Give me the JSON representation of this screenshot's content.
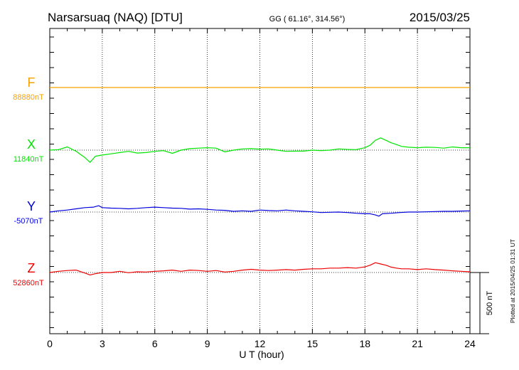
{
  "chart_data": {
    "type": "line",
    "title": "Narsarsuaq (NAQ)  [DTU]",
    "coords": "GG ( 61.16°, 314.56°)",
    "date": "2015/03/25",
    "xlabel": "U T (hour)",
    "xlim": [
      0,
      24
    ],
    "xticks": [
      "0",
      "3",
      "6",
      "9",
      "12",
      "15",
      "18",
      "21",
      "24"
    ],
    "grid": "vertical dotted every 3 hours",
    "scale_label": "500 nT",
    "scale_nT": 500,
    "plot_note": "Plotted at 2015/04/25 01:31 UT",
    "series": [
      {
        "name": "F",
        "baseline_label": "88880nT",
        "color": "#f5a200",
        "x": [
          0,
          24
        ],
        "y": [
          88880,
          88880
        ]
      },
      {
        "name": "X",
        "baseline_label": "11840nT",
        "color": "#00e600",
        "x": [
          0,
          0.5,
          1.0,
          1.5,
          1.8,
          2.0,
          2.3,
          2.6,
          3.0,
          3.5,
          4.0,
          4.5,
          5.0,
          5.5,
          6.0,
          6.5,
          7.0,
          7.5,
          8.0,
          8.5,
          9.0,
          9.5,
          10.0,
          10.5,
          11.0,
          11.5,
          12.0,
          12.5,
          13.0,
          13.5,
          14.0,
          14.5,
          15.0,
          15.5,
          16.0,
          16.5,
          17.0,
          17.5,
          18.0,
          18.3,
          18.6,
          18.9,
          19.2,
          19.5,
          19.8,
          20.1,
          20.5,
          21.0,
          21.5,
          22.0,
          22.5,
          23.0,
          23.5,
          24.0
        ],
        "y": [
          11840,
          11844,
          11866,
          11832,
          11800,
          11780,
          11740,
          11790,
          11800,
          11810,
          11820,
          11830,
          11816,
          11820,
          11830,
          11836,
          11814,
          11840,
          11852,
          11856,
          11860,
          11856,
          11826,
          11840,
          11850,
          11852,
          11848,
          11850,
          11840,
          11830,
          11832,
          11832,
          11840,
          11836,
          11840,
          11850,
          11846,
          11844,
          11860,
          11880,
          11920,
          11940,
          11920,
          11900,
          11886,
          11870,
          11864,
          11860,
          11864,
          11862,
          11856,
          11866,
          11860,
          11860
        ]
      },
      {
        "name": "Y",
        "baseline_label": "-5070nT",
        "color": "#0000dd",
        "x": [
          0,
          0.5,
          1.0,
          1.5,
          2.0,
          2.5,
          2.8,
          3.0,
          3.5,
          4.0,
          4.5,
          5.0,
          5.5,
          6.0,
          6.5,
          7.0,
          7.5,
          8.0,
          8.5,
          9.0,
          9.5,
          10.0,
          10.5,
          11.0,
          11.5,
          12.0,
          12.5,
          13.0,
          13.5,
          14.0,
          14.5,
          15.0,
          15.5,
          16.0,
          16.5,
          17.0,
          17.5,
          18.0,
          18.3,
          18.6,
          18.8,
          19.0,
          19.5,
          20.0,
          20.5,
          21.0,
          21.5,
          22.0,
          22.5,
          23.0,
          23.5,
          24.0
        ],
        "y": [
          -5076,
          -5066,
          -5060,
          -5050,
          -5040,
          -5036,
          -5024,
          -5040,
          -5044,
          -5046,
          -5050,
          -5046,
          -5040,
          -5036,
          -5040,
          -5044,
          -5046,
          -5052,
          -5050,
          -5054,
          -5060,
          -5062,
          -5070,
          -5066,
          -5070,
          -5060,
          -5064,
          -5066,
          -5060,
          -5066,
          -5070,
          -5074,
          -5080,
          -5078,
          -5076,
          -5080,
          -5086,
          -5090,
          -5090,
          -5100,
          -5110,
          -5090,
          -5086,
          -5080,
          -5076,
          -5076,
          -5074,
          -5072,
          -5070,
          -5070,
          -5068,
          -5066
        ]
      },
      {
        "name": "Z",
        "baseline_label": "52860nT",
        "color": "#ee0000",
        "x": [
          0,
          0.5,
          1.0,
          1.5,
          2.0,
          2.3,
          2.6,
          3.0,
          3.5,
          4.0,
          4.5,
          5.0,
          5.5,
          6.0,
          6.5,
          7.0,
          7.5,
          8.0,
          8.5,
          9.0,
          9.5,
          10.0,
          10.5,
          11.0,
          11.5,
          12.0,
          12.5,
          13.0,
          13.5,
          14.0,
          14.5,
          15.0,
          15.5,
          16.0,
          16.5,
          17.0,
          17.5,
          18.0,
          18.3,
          18.6,
          18.9,
          19.2,
          19.5,
          19.8,
          20.1,
          20.5,
          21.0,
          21.5,
          22.0,
          22.5,
          23.0,
          23.5,
          24.0
        ],
        "y": [
          52860,
          52870,
          52876,
          52880,
          52856,
          52840,
          52850,
          52860,
          52860,
          52870,
          52858,
          52866,
          52864,
          52870,
          52874,
          52880,
          52870,
          52880,
          52876,
          52870,
          52876,
          52864,
          52870,
          52880,
          52886,
          52880,
          52876,
          52880,
          52884,
          52880,
          52886,
          52890,
          52890,
          52896,
          52896,
          52900,
          52896,
          52906,
          52920,
          52940,
          52930,
          52920,
          52904,
          52896,
          52890,
          52890,
          52884,
          52890,
          52884,
          52880,
          52874,
          52870,
          52866
        ]
      }
    ]
  }
}
